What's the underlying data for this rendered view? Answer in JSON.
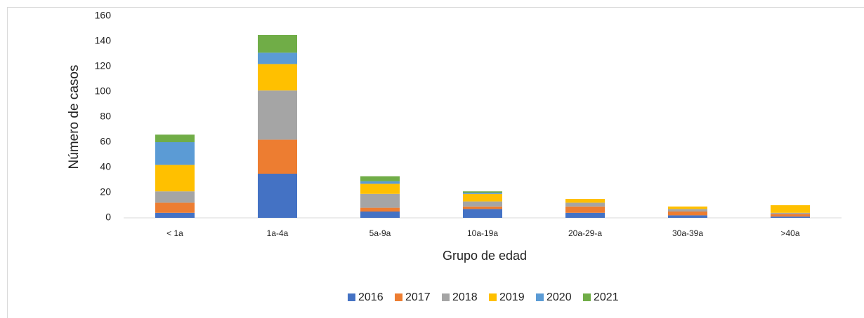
{
  "chart_data": {
    "type": "stacked_bar",
    "x_label": "Grupo de edad",
    "y_label": "Número de casos",
    "categories": [
      "< 1a",
      "1a-4a",
      "5a-9a",
      "10a-19a",
      "20a-29-a",
      "30a-39a",
      ">40a"
    ],
    "series": [
      {
        "name": "2016",
        "color": "#4472c4",
        "values": [
          4,
          35,
          5,
          7,
          4,
          2,
          1
        ]
      },
      {
        "name": "2017",
        "color": "#ed7d31",
        "values": [
          8,
          27,
          3,
          2,
          5,
          3,
          2
        ]
      },
      {
        "name": "2018",
        "color": "#a5a5a5",
        "values": [
          9,
          39,
          11,
          4,
          3,
          2,
          1
        ]
      },
      {
        "name": "2019",
        "color": "#ffc000",
        "values": [
          21,
          21,
          8,
          6,
          3,
          2,
          6
        ]
      },
      {
        "name": "2020",
        "color": "#5b9bd5",
        "values": [
          18,
          9,
          2,
          1,
          0,
          0,
          0
        ]
      },
      {
        "name": "2021",
        "color": "#70ad47",
        "values": [
          6,
          14,
          4,
          1,
          0,
          0,
          0
        ]
      }
    ],
    "ylim": [
      0,
      160
    ],
    "yticks": [
      0,
      20,
      40,
      60,
      80,
      100,
      120,
      140,
      160
    ],
    "legend": "bottom"
  }
}
